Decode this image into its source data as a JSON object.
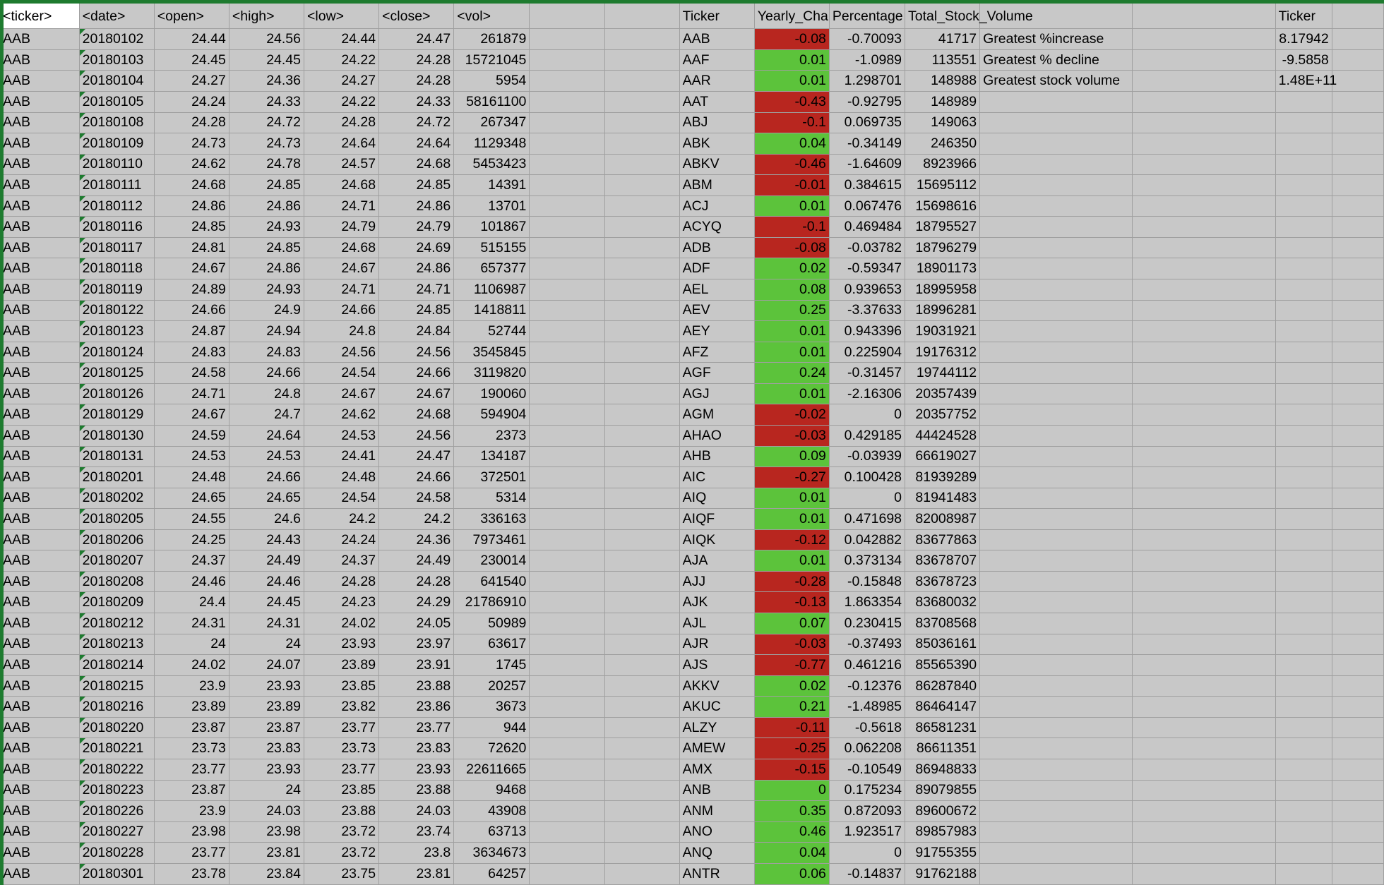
{
  "spreadsheet": {
    "headers": [
      "<ticker>",
      "<date>",
      "<open>",
      "<high>",
      "<low>",
      "<close>",
      "<vol>",
      "",
      "",
      "Ticker",
      "Yearly_Change",
      "Percentage",
      "Total_Stock_Volume",
      "",
      "",
      "Ticker",
      "",
      "",
      ""
    ],
    "stock_rows": [
      [
        "AAB",
        "20180102",
        "24.44",
        "24.56",
        "24.44",
        "24.47",
        "261879"
      ],
      [
        "AAB",
        "20180103",
        "24.45",
        "24.45",
        "24.22",
        "24.28",
        "15721045"
      ],
      [
        "AAB",
        "20180104",
        "24.27",
        "24.36",
        "24.27",
        "24.28",
        "5954"
      ],
      [
        "AAB",
        "20180105",
        "24.24",
        "24.33",
        "24.22",
        "24.33",
        "58161100"
      ],
      [
        "AAB",
        "20180108",
        "24.28",
        "24.72",
        "24.28",
        "24.72",
        "267347"
      ],
      [
        "AAB",
        "20180109",
        "24.73",
        "24.73",
        "24.64",
        "24.64",
        "1129348"
      ],
      [
        "AAB",
        "20180110",
        "24.62",
        "24.78",
        "24.57",
        "24.68",
        "5453423"
      ],
      [
        "AAB",
        "20180111",
        "24.68",
        "24.85",
        "24.68",
        "24.85",
        "14391"
      ],
      [
        "AAB",
        "20180112",
        "24.86",
        "24.86",
        "24.71",
        "24.86",
        "13701"
      ],
      [
        "AAB",
        "20180116",
        "24.85",
        "24.93",
        "24.79",
        "24.79",
        "101867"
      ],
      [
        "AAB",
        "20180117",
        "24.81",
        "24.85",
        "24.68",
        "24.69",
        "515155"
      ],
      [
        "AAB",
        "20180118",
        "24.67",
        "24.86",
        "24.67",
        "24.86",
        "657377"
      ],
      [
        "AAB",
        "20180119",
        "24.89",
        "24.93",
        "24.71",
        "24.71",
        "1106987"
      ],
      [
        "AAB",
        "20180122",
        "24.66",
        "24.9",
        "24.66",
        "24.85",
        "1418811"
      ],
      [
        "AAB",
        "20180123",
        "24.87",
        "24.94",
        "24.8",
        "24.84",
        "52744"
      ],
      [
        "AAB",
        "20180124",
        "24.83",
        "24.83",
        "24.56",
        "24.56",
        "3545845"
      ],
      [
        "AAB",
        "20180125",
        "24.58",
        "24.66",
        "24.54",
        "24.66",
        "3119820"
      ],
      [
        "AAB",
        "20180126",
        "24.71",
        "24.8",
        "24.67",
        "24.67",
        "190060"
      ],
      [
        "AAB",
        "20180129",
        "24.67",
        "24.7",
        "24.62",
        "24.68",
        "594904"
      ],
      [
        "AAB",
        "20180130",
        "24.59",
        "24.64",
        "24.53",
        "24.56",
        "2373"
      ],
      [
        "AAB",
        "20180131",
        "24.53",
        "24.53",
        "24.41",
        "24.47",
        "134187"
      ],
      [
        "AAB",
        "20180201",
        "24.48",
        "24.66",
        "24.48",
        "24.66",
        "372501"
      ],
      [
        "AAB",
        "20180202",
        "24.65",
        "24.65",
        "24.54",
        "24.58",
        "5314"
      ],
      [
        "AAB",
        "20180205",
        "24.55",
        "24.6",
        "24.2",
        "24.2",
        "336163"
      ],
      [
        "AAB",
        "20180206",
        "24.25",
        "24.43",
        "24.24",
        "24.36",
        "7973461"
      ],
      [
        "AAB",
        "20180207",
        "24.37",
        "24.49",
        "24.37",
        "24.49",
        "230014"
      ],
      [
        "AAB",
        "20180208",
        "24.46",
        "24.46",
        "24.28",
        "24.28",
        "641540"
      ],
      [
        "AAB",
        "20180209",
        "24.4",
        "24.45",
        "24.23",
        "24.29",
        "21786910"
      ],
      [
        "AAB",
        "20180212",
        "24.31",
        "24.31",
        "24.02",
        "24.05",
        "50989"
      ],
      [
        "AAB",
        "20180213",
        "24",
        "24",
        "23.93",
        "23.97",
        "63617"
      ],
      [
        "AAB",
        "20180214",
        "24.02",
        "24.07",
        "23.89",
        "23.91",
        "1745"
      ],
      [
        "AAB",
        "20180215",
        "23.9",
        "23.93",
        "23.85",
        "23.88",
        "20257"
      ],
      [
        "AAB",
        "20180216",
        "23.89",
        "23.89",
        "23.82",
        "23.86",
        "3673"
      ],
      [
        "AAB",
        "20180220",
        "23.87",
        "23.87",
        "23.77",
        "23.77",
        "944"
      ],
      [
        "AAB",
        "20180221",
        "23.73",
        "23.83",
        "23.73",
        "23.83",
        "72620"
      ],
      [
        "AAB",
        "20180222",
        "23.77",
        "23.93",
        "23.77",
        "23.93",
        "22611665"
      ],
      [
        "AAB",
        "20180223",
        "23.87",
        "24",
        "23.85",
        "23.88",
        "9468"
      ],
      [
        "AAB",
        "20180226",
        "23.9",
        "24.03",
        "23.88",
        "24.03",
        "43908"
      ],
      [
        "AAB",
        "20180227",
        "23.98",
        "23.98",
        "23.72",
        "23.74",
        "63713"
      ],
      [
        "AAB",
        "20180228",
        "23.77",
        "23.81",
        "23.72",
        "23.8",
        "3634673"
      ],
      [
        "AAB",
        "20180301",
        "23.78",
        "23.84",
        "23.75",
        "23.81",
        "64257"
      ]
    ],
    "summary_rows": [
      [
        "AAB",
        "-0.08",
        "-0.70093",
        "41717"
      ],
      [
        "AAF",
        "0.01",
        "-1.0989",
        "113551"
      ],
      [
        "AAR",
        "0.01",
        "1.298701",
        "148988"
      ],
      [
        "AAT",
        "-0.43",
        "-0.92795",
        "148989"
      ],
      [
        "ABJ",
        "-0.1",
        "0.069735",
        "149063"
      ],
      [
        "ABK",
        "0.04",
        "-0.34149",
        "246350"
      ],
      [
        "ABKV",
        "-0.46",
        "-1.64609",
        "8923966"
      ],
      [
        "ABM",
        "-0.01",
        "0.384615",
        "15695112"
      ],
      [
        "ACJ",
        "0.01",
        "0.067476",
        "15698616"
      ],
      [
        "ACYQ",
        "-0.1",
        "0.469484",
        "18795527"
      ],
      [
        "ADB",
        "-0.08",
        "-0.03782",
        "18796279"
      ],
      [
        "ADF",
        "0.02",
        "-0.59347",
        "18901173"
      ],
      [
        "AEL",
        "0.08",
        "0.939653",
        "18995958"
      ],
      [
        "AEV",
        "0.25",
        "-3.37633",
        "18996281"
      ],
      [
        "AEY",
        "0.01",
        "0.943396",
        "19031921"
      ],
      [
        "AFZ",
        "0.01",
        "0.225904",
        "19176312"
      ],
      [
        "AGF",
        "0.24",
        "-0.31457",
        "19744112"
      ],
      [
        "AGJ",
        "0.01",
        "-2.16306",
        "20357439"
      ],
      [
        "AGM",
        "-0.02",
        "0",
        "20357752"
      ],
      [
        "AHAO",
        "-0.03",
        "0.429185",
        "44424528"
      ],
      [
        "AHB",
        "0.09",
        "-0.03939",
        "66619027"
      ],
      [
        "AIC",
        "-0.27",
        "0.100428",
        "81939289"
      ],
      [
        "AIQ",
        "0.01",
        "0",
        "81941483"
      ],
      [
        "AIQF",
        "0.01",
        "0.471698",
        "82008987"
      ],
      [
        "AIQK",
        "-0.12",
        "0.042882",
        "83677863"
      ],
      [
        "AJA",
        "0.01",
        "0.373134",
        "83678707"
      ],
      [
        "AJJ",
        "-0.28",
        "-0.15848",
        "83678723"
      ],
      [
        "AJK",
        "-0.13",
        "1.863354",
        "83680032"
      ],
      [
        "AJL",
        "0.07",
        "0.230415",
        "83708568"
      ],
      [
        "AJR",
        "-0.03",
        "-0.37493",
        "85036161"
      ],
      [
        "AJS",
        "-0.77",
        "0.461216",
        "85565390"
      ],
      [
        "AKKV",
        "0.02",
        "-0.12376",
        "86287840"
      ],
      [
        "AKUC",
        "0.21",
        "-1.48985",
        "86464147"
      ],
      [
        "ALZY",
        "-0.11",
        "-0.5618",
        "86581231"
      ],
      [
        "AMEW",
        "-0.25",
        "0.062208",
        "86611351"
      ],
      [
        "AMX",
        "-0.15",
        "-0.10549",
        "86948833"
      ],
      [
        "ANB",
        "0",
        "0.175234",
        "89079855"
      ],
      [
        "ANM",
        "0.35",
        "0.872093",
        "89600672"
      ],
      [
        "ANO",
        "0.46",
        "1.923517",
        "89857983"
      ],
      [
        "ANQ",
        "0.04",
        "0",
        "91755355"
      ],
      [
        "ANTR",
        "0.06",
        "-0.14837",
        "91762188"
      ]
    ],
    "greatest": [
      {
        "label": "Greatest %increase",
        "value": "8.17942"
      },
      {
        "label": "Greatest % decline",
        "value": "-9.5858"
      },
      {
        "label": "Greatest stock volume",
        "value": "1.48E+11"
      }
    ],
    "colors": {
      "negative_fill": "#b8261f",
      "positive_fill": "#5cc33b",
      "grid": "#9f9f9f",
      "background": "#c8c8c8",
      "selection": "#1e7b2f"
    }
  }
}
